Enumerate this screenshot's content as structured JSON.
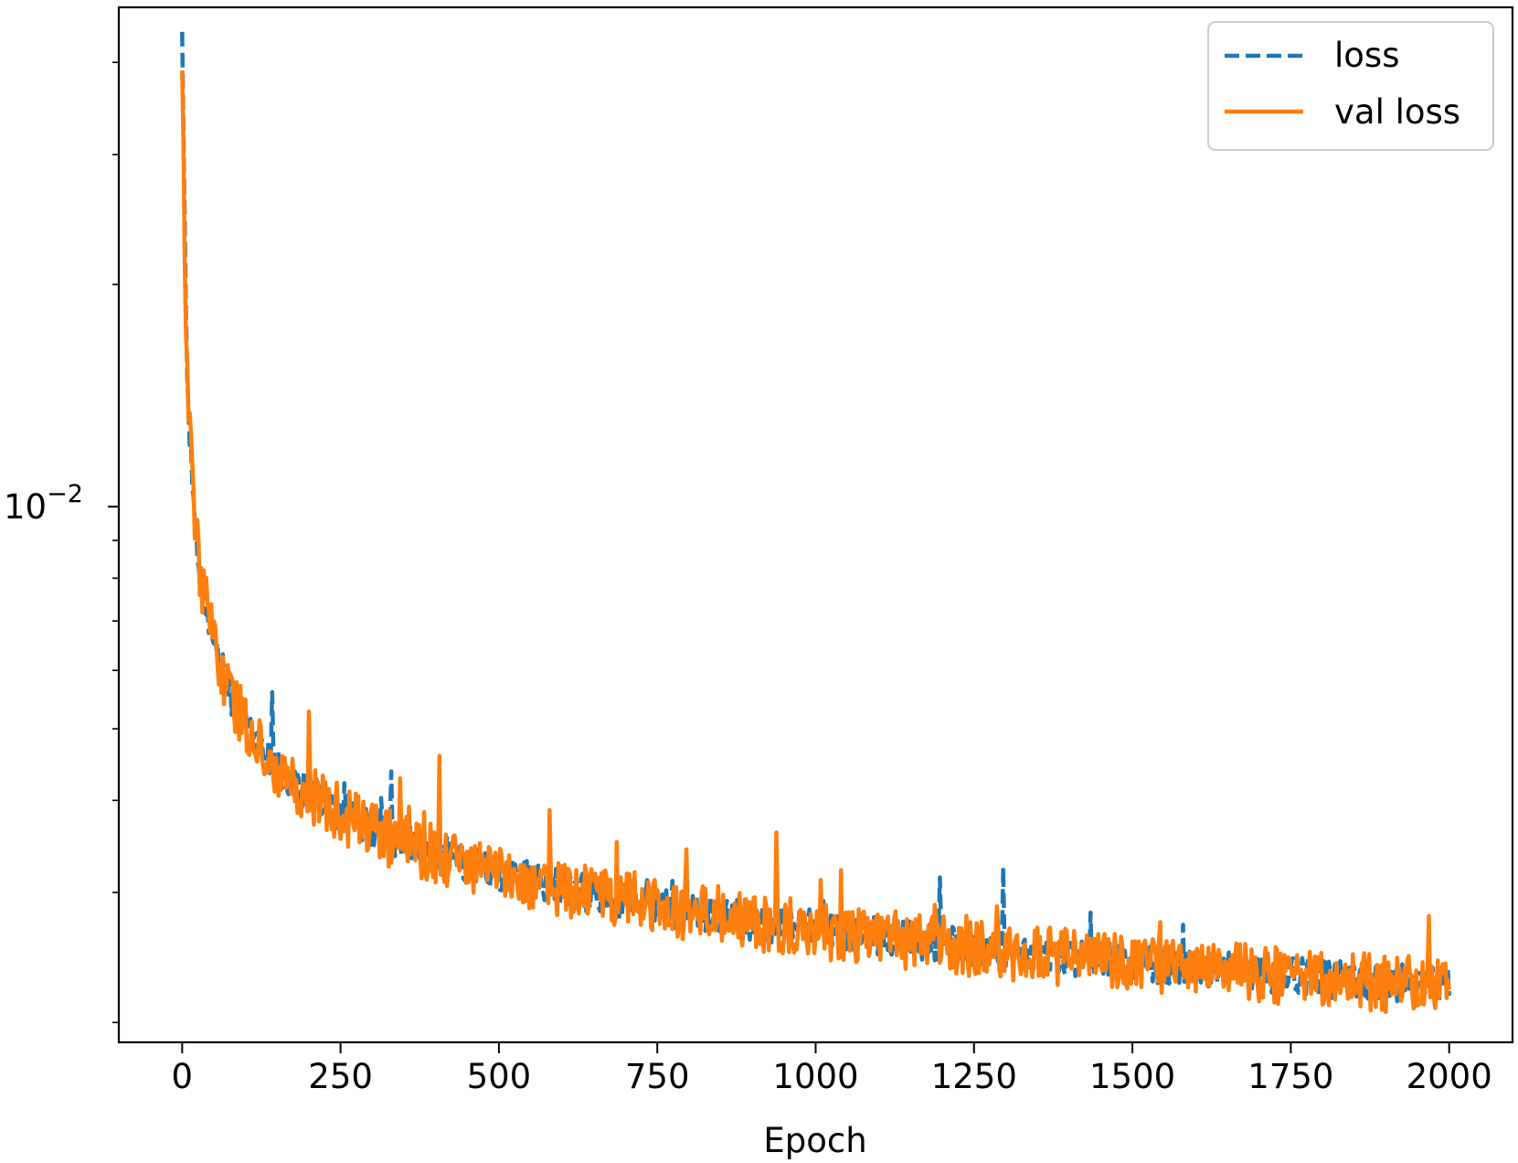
{
  "chart_data": {
    "type": "line",
    "title": "",
    "xlabel": "Epoch",
    "ylabel": "",
    "yscale": "log",
    "xlim": [
      -100,
      2100
    ],
    "ylim": [
      0.00188,
      0.0475
    ],
    "x_ticks": [
      0,
      250,
      500,
      750,
      1000,
      1250,
      1500,
      1750,
      2000
    ],
    "x_tick_labels": [
      "0",
      "250",
      "500",
      "750",
      "1000",
      "1250",
      "1500",
      "1750",
      "2000"
    ],
    "y_major_ticks": [
      0.01
    ],
    "y_major_tick_labels": [
      {
        "base": "10",
        "exp": "−2"
      }
    ],
    "y_minor_ticks": [
      0.002,
      0.003,
      0.004,
      0.005,
      0.006,
      0.007,
      0.008,
      0.009,
      0.02,
      0.03,
      0.04
    ],
    "grid": false,
    "legend": {
      "position": "top-right"
    },
    "series": [
      {
        "name": "loss",
        "color": "#1f77b4",
        "style": "dashed",
        "x": [
          0,
          3,
          6,
          10,
          15,
          20,
          25,
          30,
          40,
          50,
          60,
          75,
          100,
          125,
          150,
          175,
          200,
          250,
          300,
          350,
          400,
          450,
          500,
          600,
          700,
          800,
          900,
          1000,
          1100,
          1200,
          1300,
          1400,
          1500,
          1600,
          1700,
          1800,
          1900,
          2000
        ],
        "y": [
          0.044,
          0.028,
          0.018,
          0.0135,
          0.0112,
          0.0098,
          0.0088,
          0.008,
          0.0072,
          0.0066,
          0.0061,
          0.0056,
          0.0051,
          0.0047,
          0.00445,
          0.00425,
          0.0041,
          0.00385,
          0.00365,
          0.0035,
          0.0034,
          0.0033,
          0.0032,
          0.00305,
          0.00293,
          0.00283,
          0.00275,
          0.00268,
          0.00262,
          0.00256,
          0.00251,
          0.00246,
          0.00242,
          0.00238,
          0.00234,
          0.0023,
          0.00227,
          0.00224
        ]
      },
      {
        "name": "val loss",
        "color": "#ff7f0e",
        "style": "solid",
        "noise": "high-frequency fluctuation around the trend, occasional upward spikes",
        "x": [
          0,
          3,
          6,
          10,
          15,
          20,
          25,
          30,
          40,
          50,
          60,
          75,
          100,
          125,
          150,
          175,
          200,
          250,
          300,
          350,
          400,
          450,
          500,
          600,
          700,
          800,
          900,
          1000,
          1100,
          1200,
          1300,
          1400,
          1500,
          1600,
          1700,
          1800,
          1900,
          2000
        ],
        "y": [
          0.039,
          0.027,
          0.018,
          0.0135,
          0.0112,
          0.0098,
          0.0088,
          0.008,
          0.0072,
          0.0066,
          0.0061,
          0.0056,
          0.0051,
          0.0047,
          0.00445,
          0.00425,
          0.0041,
          0.00385,
          0.00365,
          0.0035,
          0.0034,
          0.0033,
          0.0032,
          0.00305,
          0.00293,
          0.00283,
          0.00275,
          0.00268,
          0.00262,
          0.00256,
          0.00251,
          0.00246,
          0.00242,
          0.00238,
          0.00234,
          0.0023,
          0.00227,
          0.00224
        ]
      }
    ]
  }
}
